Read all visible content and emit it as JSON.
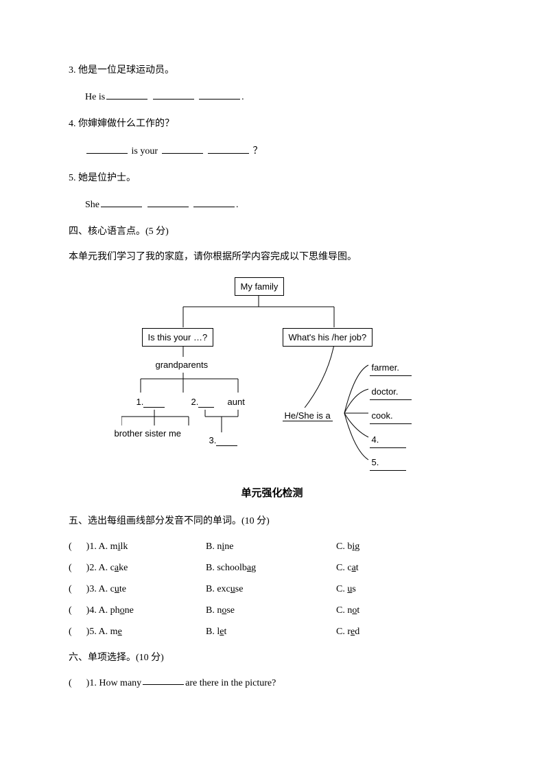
{
  "q3": {
    "num": "3. ",
    "zh": "他是一位足球运动员。",
    "en_pre": "He is",
    "en_post": "."
  },
  "q4": {
    "num": "4. ",
    "zh": "你婶婶做什么工作的？",
    "mid": " is your ",
    "end": " ？"
  },
  "q5": {
    "num": "5. ",
    "zh": "她是位护士。",
    "en_pre": "She",
    "en_post": "."
  },
  "sec4": "四、核心语言点。(5 分)",
  "sec4_desc": "本单元我们学习了我的家庭，请你根据所学内容完成以下思维导图。",
  "mindmap": {
    "root": "My family",
    "left_q": "Is this your …?",
    "right_q": "What's his /her job?",
    "gp": "grandparents",
    "n1": "1.",
    "n2": "2.",
    "aunt": "aunt",
    "n3": "3.",
    "bsm": "brother sister me",
    "heis": "He/She is a",
    "jobs": [
      "farmer.",
      "doctor.",
      "cook.",
      "4.",
      "5."
    ]
  },
  "unit_title": "单元强化检测",
  "sec5": "五、选出每组画线部分发音不同的单词。(10 分)",
  "s5": [
    {
      "n": "1",
      "a": "milk",
      "au": "i",
      "b": "nine",
      "bu": "i",
      "c": "big",
      "cu": "i"
    },
    {
      "n": "2",
      "a": "cake",
      "au": "a",
      "b": "schoolbag",
      "bu": "a",
      "c": "cat",
      "cu": "a"
    },
    {
      "n": "3",
      "a": "cute",
      "au": "u",
      "b": "excuse",
      "bu": "u",
      "c": "us",
      "cu": "u"
    },
    {
      "n": "4",
      "a": "phone",
      "au": "o",
      "b": "nose",
      "bu": "o",
      "c": "not",
      "cu": "o"
    },
    {
      "n": "5",
      "a": "me",
      "au": "e",
      "b": "let",
      "bu": "e",
      "c": "red",
      "cu": "e"
    }
  ],
  "sec6": "六、单项选择。(10 分)",
  "s6q1_pre": ")1. How many ",
  "s6q1_post": " are there in the picture?"
}
